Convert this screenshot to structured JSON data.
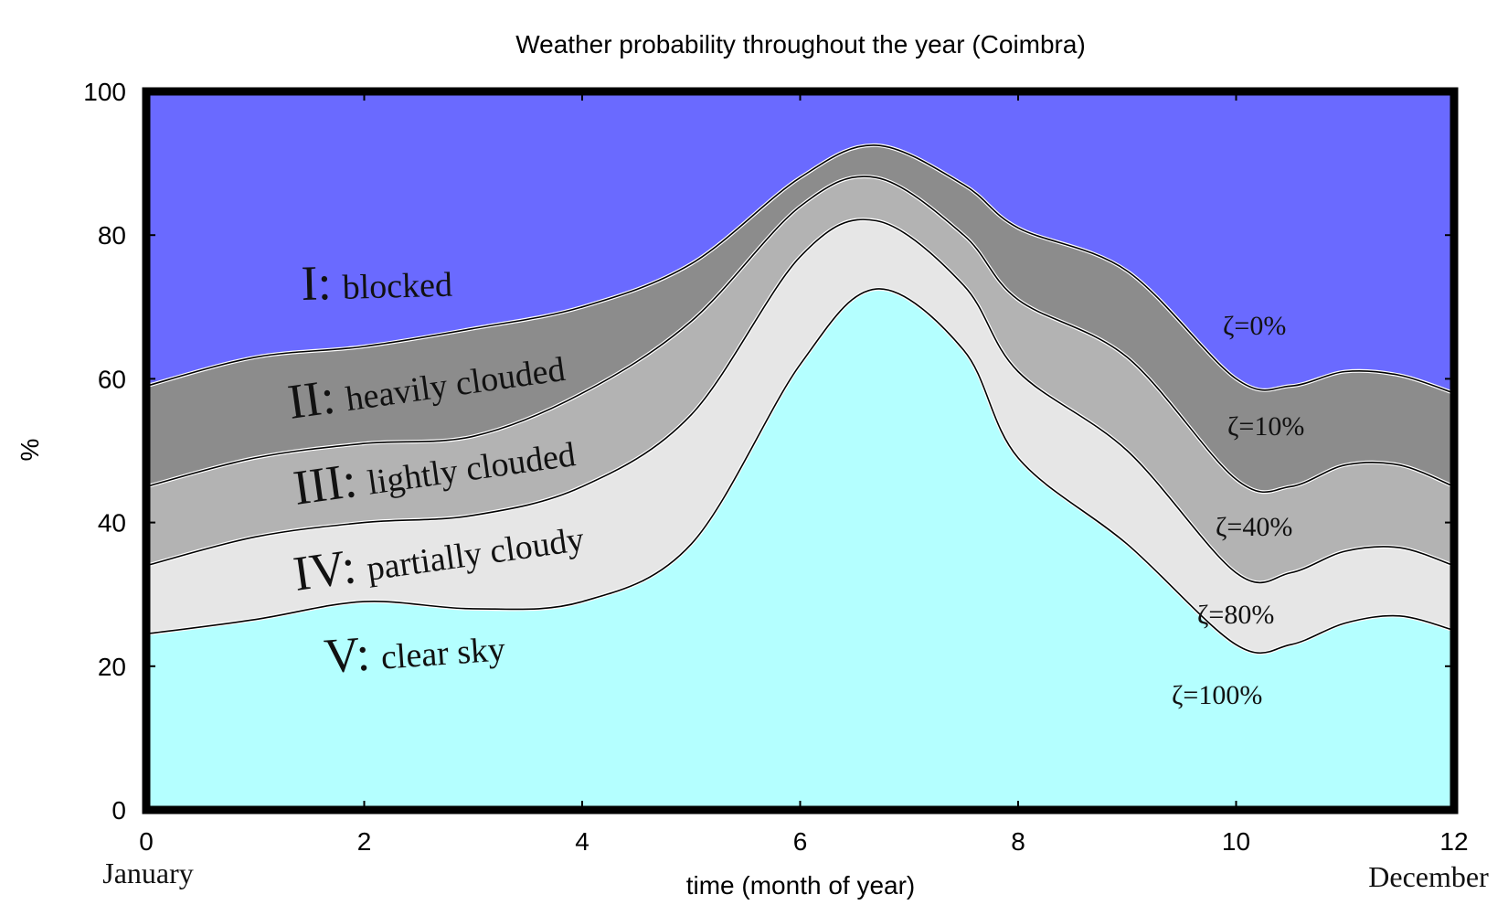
{
  "chart_data": {
    "type": "area",
    "title": "Weather probability throughout the year (Coimbra)",
    "xlabel": "time (month of year)",
    "ylabel": "%",
    "xlim": [
      0,
      12
    ],
    "ylim": [
      0,
      100
    ],
    "xticks": [
      0,
      2,
      4,
      6,
      8,
      10,
      12
    ],
    "yticks": [
      0,
      20,
      40,
      60,
      80,
      100
    ],
    "x_extra_labels": {
      "start": "January",
      "end": "December"
    },
    "grid": false,
    "x": [
      0,
      1,
      2,
      3,
      4,
      5,
      6,
      6.7,
      7.5,
      8,
      9,
      10,
      10.5,
      11,
      11.5,
      12
    ],
    "boundaries": [
      {
        "name": "ζ=100%",
        "values": [
          24.5,
          26.5,
          29,
          28,
          29,
          37,
          62,
          72.5,
          64,
          49,
          37,
          23,
          23,
          26,
          27,
          25
        ]
      },
      {
        "name": "ζ=80%",
        "values": [
          34,
          38,
          40,
          41,
          45,
          55,
          77,
          82,
          73,
          61,
          50,
          33,
          33,
          36,
          36.5,
          34
        ]
      },
      {
        "name": "ζ=40%",
        "values": [
          45,
          49,
          51,
          52,
          58,
          68,
          84,
          88,
          80,
          71,
          63,
          46,
          45,
          48,
          48,
          45
        ]
      },
      {
        "name": "ζ=10%",
        "values": [
          59,
          63,
          64.5,
          67,
          70,
          76,
          88,
          92.5,
          87,
          81,
          75,
          60,
          59,
          61,
          60.5,
          58
        ]
      },
      {
        "name": "ζ=0%",
        "values": [
          99,
          99,
          99,
          99,
          99,
          99,
          99,
          99,
          99,
          99,
          99,
          99,
          99,
          99,
          99,
          99
        ]
      }
    ],
    "regions": [
      {
        "roman": "I:",
        "name": "blocked",
        "color": "#6a6aff"
      },
      {
        "roman": "II:",
        "name": "heavily clouded",
        "color": "#8c8c8c"
      },
      {
        "roman": "III:",
        "name": "lightly clouded",
        "color": "#b3b3b3"
      },
      {
        "roman": "IV:",
        "name": "partially cloudy",
        "color": "#e6e6e6"
      },
      {
        "roman": "V:",
        "name": "clear sky",
        "color": "#b4ffff"
      }
    ]
  }
}
